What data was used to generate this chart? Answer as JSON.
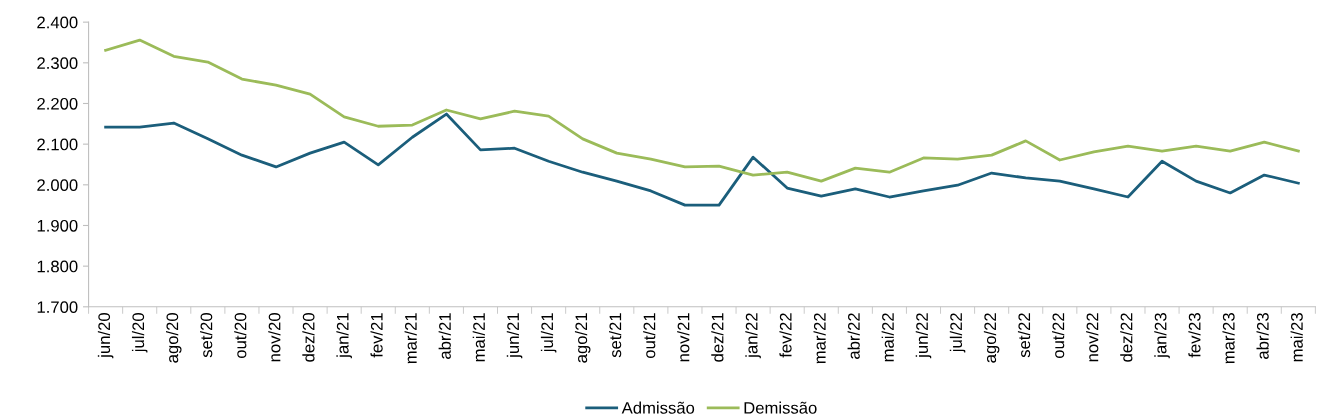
{
  "chart_data": {
    "type": "line",
    "categories": [
      "jun/20",
      "jul/20",
      "ago/20",
      "set/20",
      "out/20",
      "nov/20",
      "dez/20",
      "jan/21",
      "fev/21",
      "mar/21",
      "abr/21",
      "mai/21",
      "jun/21",
      "jul/21",
      "ago/21",
      "set/21",
      "out/21",
      "nov/21",
      "dez/21",
      "jan/22",
      "fev/22",
      "mar/22",
      "abr/22",
      "mai/22",
      "jun/22",
      "jul/22",
      "ago/22",
      "set/22",
      "out/22",
      "nov/22",
      "dez/22",
      "jan/23",
      "fev/23",
      "mar/23",
      "abr/23",
      "mai/23"
    ],
    "series": [
      {
        "name": "Admissão",
        "color": "#1b5e7b",
        "values": [
          2142,
          2142,
          2152,
          2113,
          2073,
          2044,
          2078,
          2105,
          2049,
          2117,
          2174,
          2086,
          2090,
          2058,
          2031,
          2009,
          1985,
          1950,
          1950,
          2068,
          1992,
          1972,
          1990,
          1970,
          1985,
          1999,
          2029,
          2017,
          2009,
          1990,
          1970,
          2058,
          2009,
          1980,
          2024,
          2004
        ]
      },
      {
        "name": "Demissão",
        "color": "#9bbb59",
        "values": [
          2331,
          2356,
          2316,
          2302,
          2260,
          2245,
          2223,
          2167,
          2144,
          2147,
          2184,
          2162,
          2181,
          2169,
          2113,
          2078,
          2063,
          2044,
          2046,
          2024,
          2031,
          2009,
          2041,
          2031,
          2066,
          2063,
          2073,
          2108,
          2061,
          2081,
          2095,
          2083,
          2095,
          2083,
          2105,
          2083
        ]
      }
    ],
    "ylim": [
      1700,
      2400
    ],
    "yticks": [
      {
        "value": 1700,
        "label": "1.700"
      },
      {
        "value": 1800,
        "label": "1.800"
      },
      {
        "value": 1900,
        "label": "1.900"
      },
      {
        "value": 2000,
        "label": "2.000"
      },
      {
        "value": 2100,
        "label": "2.100"
      },
      {
        "value": 2200,
        "label": "2.200"
      },
      {
        "value": 2300,
        "label": "2.300"
      },
      {
        "value": 2400,
        "label": "2.400"
      }
    ],
    "grid": false,
    "legend": "bottom",
    "marker": "none",
    "line_style": "solid"
  }
}
